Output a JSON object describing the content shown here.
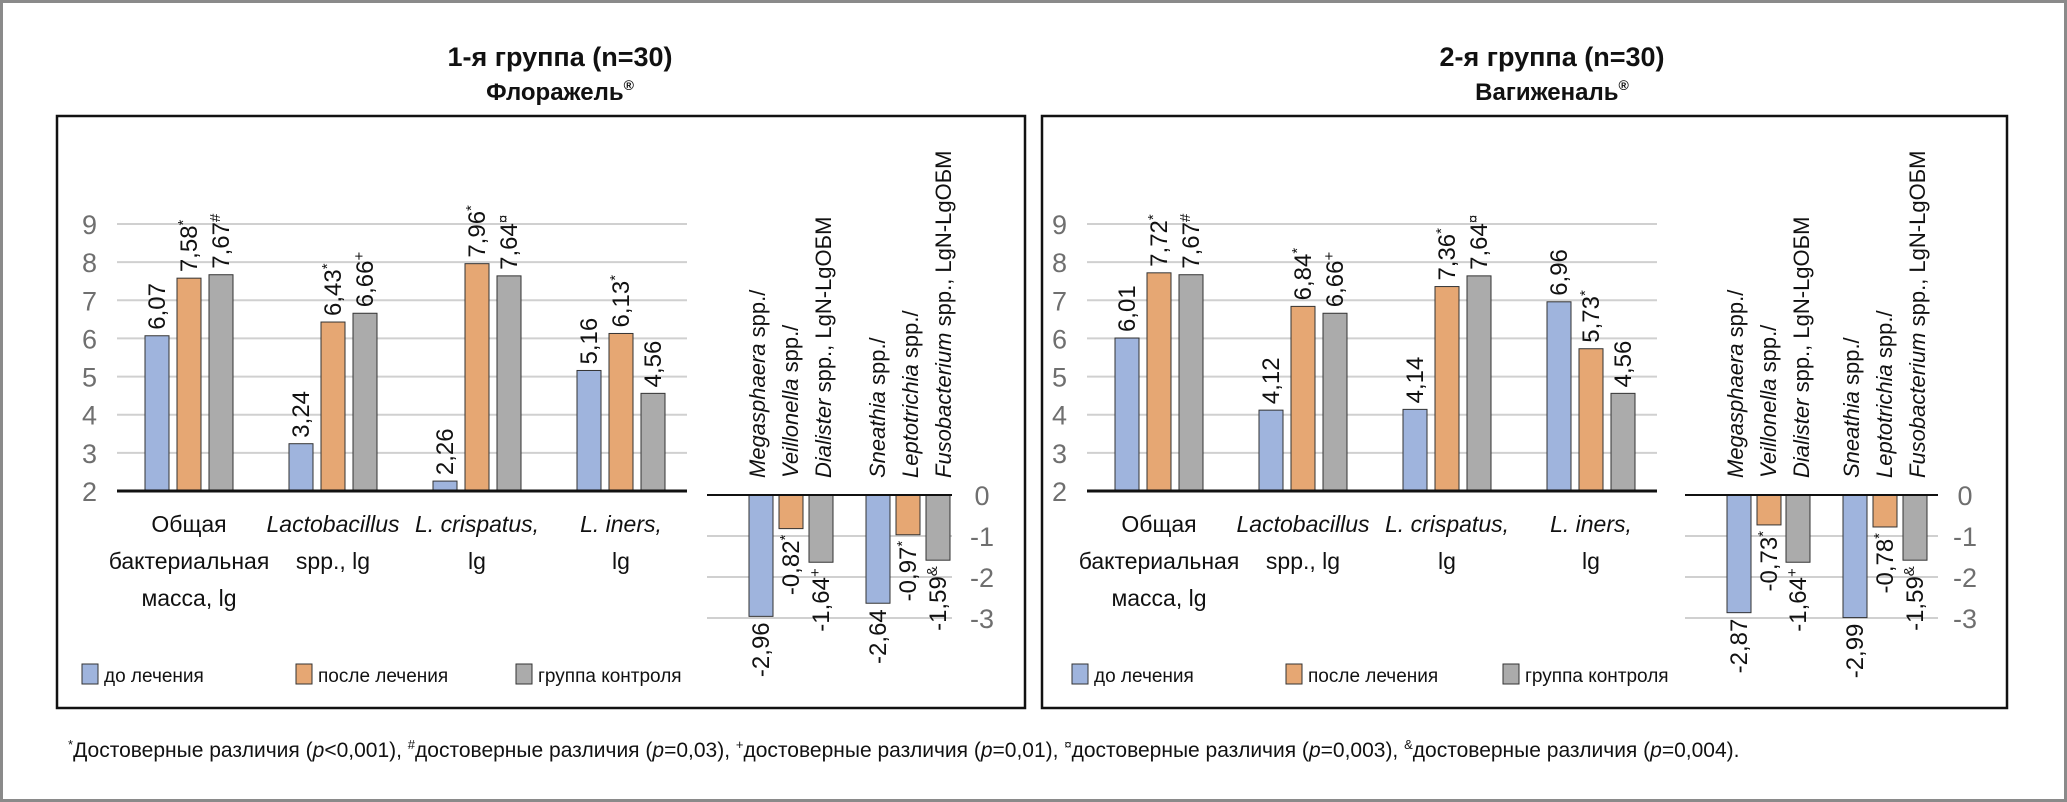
{
  "footnote": {
    "parts": [
      {
        "sup": "*",
        "text": "Достоверные различия ("
      },
      {
        "it": "p"
      },
      {
        "text": "<0,001), "
      },
      {
        "sup": "#",
        "text": "достоверные различия ("
      },
      {
        "it": "p"
      },
      {
        "text": "=0,03), "
      },
      {
        "sup": "+",
        "text": "достоверные различия ("
      },
      {
        "it": "p"
      },
      {
        "text": "=0,01), "
      },
      {
        "sup": "¤",
        "text": "достоверные различия ("
      },
      {
        "it": "p"
      },
      {
        "text": "=0,003), "
      },
      {
        "sup": "&",
        "text": "достоверные различия ("
      },
      {
        "it": "p"
      },
      {
        "text": "=0,004)."
      }
    ]
  },
  "colors": {
    "before": "#9FB4DD",
    "after": "#E6A773",
    "control": "#ABABAB",
    "grid": "#D0D0D0",
    "axis": "#111111"
  },
  "legend": [
    {
      "key": "before",
      "label": "до лечения"
    },
    {
      "key": "after",
      "label": "после лечения"
    },
    {
      "key": "control",
      "label": "группа контроля"
    }
  ],
  "chart_data": [
    {
      "type": "bar",
      "title": "1-я группа (n=30)",
      "subtitle": "Флоражель",
      "subtitle_mark": "®",
      "positive": {
        "ylim": [
          2,
          9
        ],
        "yticks": [
          "2",
          "3",
          "4",
          "5",
          "6",
          "7",
          "8",
          "9"
        ],
        "categories": [
          {
            "lines": [
              {
                "t": "Общая"
              },
              {
                "t": "бактериальная"
              },
              {
                "t": "масса, lg"
              }
            ]
          },
          {
            "lines": [
              {
                "t": "Lactobacillus",
                "it": true
              },
              {
                "t": "spp., lg"
              }
            ]
          },
          {
            "lines": [
              {
                "t": "L. crispatus,",
                "it": true
              },
              {
                "t": "lg"
              }
            ]
          },
          {
            "lines": [
              {
                "t": "L. iners,",
                "it": true
              },
              {
                "t": "lg"
              }
            ]
          }
        ],
        "series": [
          {
            "name": "до лечения",
            "key": "before",
            "values": [
              6.07,
              3.24,
              2.26,
              5.16
            ],
            "labels": [
              "6,07",
              "3,24",
              "2,26",
              "5,16"
            ],
            "marks": [
              "",
              "",
              "",
              ""
            ]
          },
          {
            "name": "после лечения",
            "key": "after",
            "values": [
              7.58,
              6.43,
              7.96,
              6.13
            ],
            "labels": [
              "7,58",
              "6,43",
              "7,96",
              "6,13"
            ],
            "marks": [
              "*",
              "*",
              "*",
              "*"
            ]
          },
          {
            "name": "группа контроля",
            "key": "control",
            "values": [
              7.67,
              6.66,
              7.64,
              4.56
            ],
            "labels": [
              "7,67",
              "6,66",
              "7,64",
              "4,56"
            ],
            "marks": [
              "#",
              "+",
              "¤",
              ""
            ]
          }
        ]
      },
      "negative": {
        "ylim": [
          -3,
          0
        ],
        "yticks": [
          "0",
          "-1",
          "-2",
          "-3"
        ],
        "categories": [
          {
            "lines": [
              [
                {
                  "t": "Megasphaera",
                  "it": true
                },
                {
                  "t": " spp./"
                }
              ],
              [
                {
                  "t": "Veillonella",
                  "it": true
                },
                {
                  "t": " spp./"
                }
              ],
              [
                {
                  "t": "Dialister",
                  "it": true
                },
                {
                  "t": " spp., LgN-LgОБМ"
                }
              ]
            ]
          },
          {
            "lines": [
              [
                {
                  "t": "Sneathia",
                  "it": true
                },
                {
                  "t": " spp./"
                }
              ],
              [
                {
                  "t": "Leptotrichia",
                  "it": true
                },
                {
                  "t": " spp./"
                }
              ],
              [
                {
                  "t": "Fusobacterium",
                  "it": true
                },
                {
                  "t": " spp., LgN-LgОБМ"
                }
              ]
            ]
          }
        ],
        "series": [
          {
            "name": "до лечения",
            "key": "before",
            "values": [
              -2.96,
              -2.64
            ],
            "labels": [
              "-2,96",
              "-2,64"
            ],
            "marks": [
              "",
              ""
            ]
          },
          {
            "name": "после лечения",
            "key": "after",
            "values": [
              -0.82,
              -0.97
            ],
            "labels": [
              "-0,82",
              "-0,97"
            ],
            "marks": [
              "*",
              "*"
            ]
          },
          {
            "name": "группа контроля",
            "key": "control",
            "values": [
              -1.64,
              -1.59
            ],
            "labels": [
              "-1,64",
              "-1,59"
            ],
            "marks": [
              "+",
              "&"
            ]
          }
        ]
      }
    },
    {
      "type": "bar",
      "title": "2-я группа (n=30)",
      "subtitle": "Вагиженаль",
      "subtitle_mark": "®",
      "positive": {
        "ylim": [
          2,
          9
        ],
        "yticks": [
          "2",
          "3",
          "4",
          "5",
          "6",
          "7",
          "8",
          "9"
        ],
        "categories": [
          {
            "lines": [
              {
                "t": "Общая"
              },
              {
                "t": "бактериальная"
              },
              {
                "t": "масса, lg"
              }
            ]
          },
          {
            "lines": [
              {
                "t": "Lactobacillus",
                "it": true
              },
              {
                "t": "spp., lg"
              }
            ]
          },
          {
            "lines": [
              {
                "t": "L. crispatus,",
                "it": true
              },
              {
                "t": "lg"
              }
            ]
          },
          {
            "lines": [
              {
                "t": "L. iners,",
                "it": true
              },
              {
                "t": "lg"
              }
            ]
          }
        ],
        "series": [
          {
            "name": "до лечения",
            "key": "before",
            "values": [
              6.01,
              4.12,
              4.14,
              6.96
            ],
            "labels": [
              "6,01",
              "4,12",
              "4,14",
              "6,96"
            ],
            "marks": [
              "",
              "",
              "",
              ""
            ]
          },
          {
            "name": "после лечения",
            "key": "after",
            "values": [
              7.72,
              6.84,
              7.36,
              5.73
            ],
            "labels": [
              "7,72",
              "6,84",
              "7,36",
              "5,73"
            ],
            "marks": [
              "*",
              "*",
              "*",
              "*"
            ]
          },
          {
            "name": "группа контроля",
            "key": "control",
            "values": [
              7.67,
              6.66,
              7.64,
              4.56
            ],
            "labels": [
              "7,67",
              "6,66",
              "7,64",
              "4,56"
            ],
            "marks": [
              "#",
              "+",
              "¤",
              ""
            ]
          }
        ]
      },
      "negative": {
        "ylim": [
          -3,
          0
        ],
        "yticks": [
          "0",
          "-1",
          "-2",
          "-3"
        ],
        "categories": [
          {
            "lines": [
              [
                {
                  "t": "Megasphaera",
                  "it": true
                },
                {
                  "t": " spp./"
                }
              ],
              [
                {
                  "t": "Veillonella",
                  "it": true
                },
                {
                  "t": " spp./"
                }
              ],
              [
                {
                  "t": "Dialister",
                  "it": true
                },
                {
                  "t": " spp., LgN-LgОБМ"
                }
              ]
            ]
          },
          {
            "lines": [
              [
                {
                  "t": "Sneathia",
                  "it": true
                },
                {
                  "t": " spp./"
                }
              ],
              [
                {
                  "t": "Leptotrichia",
                  "it": true
                },
                {
                  "t": " spp./"
                }
              ],
              [
                {
                  "t": "Fusobacterium",
                  "it": true
                },
                {
                  "t": " spp., LgN-LgОБМ"
                }
              ]
            ]
          }
        ],
        "series": [
          {
            "name": "до лечения",
            "key": "before",
            "values": [
              -2.87,
              -2.99
            ],
            "labels": [
              "-2,87",
              "-2,99"
            ],
            "marks": [
              "",
              ""
            ]
          },
          {
            "name": "после лечения",
            "key": "after",
            "values": [
              -0.73,
              -0.78
            ],
            "labels": [
              "-0,73",
              "-0,78"
            ],
            "marks": [
              "*",
              "*"
            ]
          },
          {
            "name": "группа контроля",
            "key": "control",
            "values": [
              -1.64,
              -1.59
            ],
            "labels": [
              "-1,64",
              "-1,59"
            ],
            "marks": [
              "+",
              "&"
            ]
          }
        ]
      }
    }
  ]
}
